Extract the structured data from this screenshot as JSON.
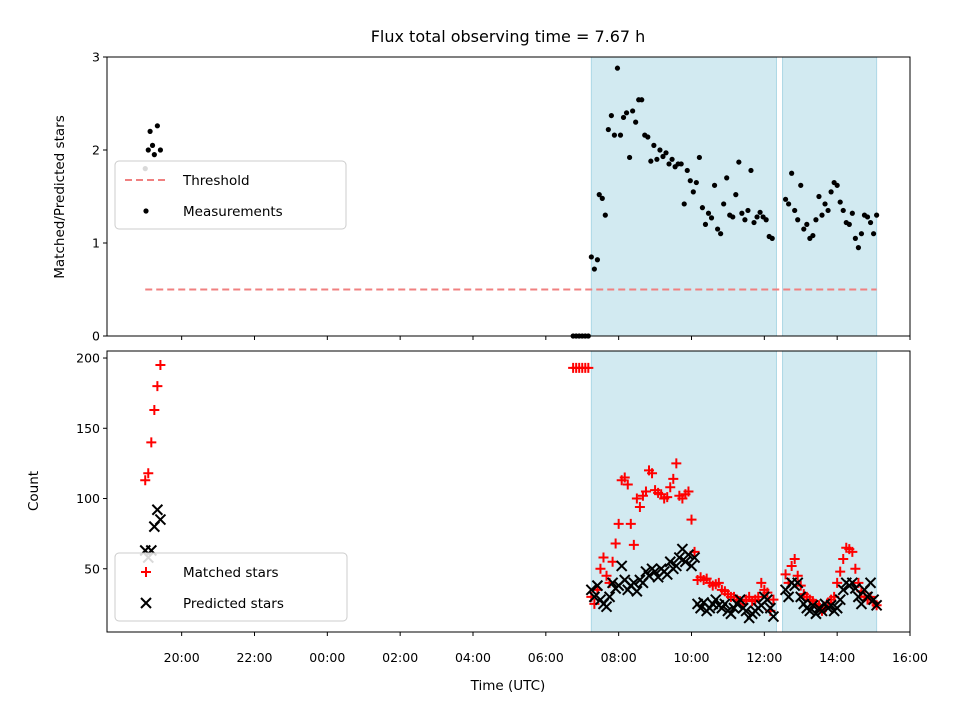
{
  "chart_data": [
    {
      "type": "scatter",
      "title": "Flux total observing time = 7.67 h",
      "ylabel": "Matched/Predicted stars",
      "xlabel": "",
      "ylim": [
        0,
        3
      ],
      "yticks": [
        "0",
        "1",
        "2",
        "3"
      ],
      "xlim_hours_utc": [
        17.95,
        40.0
      ],
      "shaded_intervals_utc": [
        [
          "07:15",
          "12:20"
        ],
        [
          "12:30",
          "15:05"
        ]
      ],
      "shade_color": "#add8e6",
      "legend": {
        "placement": "center-left",
        "entries": [
          "Threshold",
          "Measurements"
        ]
      },
      "series": [
        {
          "name": "Threshold",
          "style": "dashed-line",
          "color": "#f08080",
          "x": [
            "19:00",
            "15:05"
          ],
          "y": [
            0.5,
            0.5
          ]
        },
        {
          "name": "Measurements",
          "style": "dot",
          "color": "#000000",
          "x": [
            "19:00",
            "19:05",
            "19:08",
            "19:12",
            "19:15",
            "19:20",
            "19:25",
            "06:45",
            "06:50",
            "06:55",
            "07:00",
            "07:05",
            "07:10",
            "07:15",
            "07:20",
            "07:25",
            "07:28",
            "07:33",
            "07:38",
            "07:43",
            "07:48",
            "07:53",
            "07:58",
            "08:03",
            "08:08",
            "08:13",
            "08:18",
            "08:23",
            "08:28",
            "08:33",
            "08:38",
            "08:43",
            "08:48",
            "08:53",
            "08:58",
            "09:03",
            "09:08",
            "09:13",
            "09:18",
            "09:23",
            "09:28",
            "09:33",
            "09:38",
            "09:43",
            "09:48",
            "09:53",
            "09:58",
            "10:03",
            "10:08",
            "10:13",
            "10:18",
            "10:23",
            "10:28",
            "10:33",
            "10:38",
            "10:43",
            "10:48",
            "10:53",
            "10:58",
            "11:03",
            "11:08",
            "11:13",
            "11:18",
            "11:23",
            "11:28",
            "11:33",
            "11:38",
            "11:43",
            "11:48",
            "11:53",
            "11:58",
            "12:03",
            "12:08",
            "12:13",
            "12:35",
            "12:40",
            "12:45",
            "12:50",
            "12:55",
            "13:00",
            "13:05",
            "13:10",
            "13:15",
            "13:20",
            "13:25",
            "13:30",
            "13:35",
            "13:40",
            "13:45",
            "13:50",
            "13:55",
            "14:00",
            "14:05",
            "14:10",
            "14:15",
            "14:20",
            "14:25",
            "14:30",
            "14:35",
            "14:40",
            "14:45",
            "14:50",
            "14:55",
            "15:00",
            "15:05"
          ],
          "y": [
            1.8,
            2.0,
            2.2,
            2.05,
            1.95,
            2.26,
            2.0,
            0,
            0,
            0,
            0,
            0,
            0,
            0.85,
            0.72,
            0.82,
            1.52,
            1.48,
            1.3,
            2.22,
            2.37,
            2.16,
            2.88,
            2.16,
            2.35,
            2.4,
            1.92,
            2.42,
            2.3,
            2.54,
            2.54,
            2.16,
            2.14,
            1.88,
            2.05,
            1.9,
            2.0,
            1.93,
            1.97,
            1.85,
            1.9,
            1.82,
            1.85,
            1.85,
            1.42,
            1.78,
            1.67,
            1.55,
            1.65,
            1.92,
            1.38,
            1.2,
            1.32,
            1.27,
            1.62,
            1.15,
            1.1,
            1.42,
            1.7,
            1.3,
            1.28,
            1.52,
            1.87,
            1.32,
            1.25,
            1.35,
            1.78,
            1.22,
            1.28,
            1.33,
            1.28,
            1.25,
            1.07,
            1.05,
            1.47,
            1.42,
            1.75,
            1.35,
            1.25,
            1.62,
            1.15,
            1.2,
            1.05,
            1.08,
            1.25,
            1.5,
            1.3,
            1.42,
            1.35,
            1.55,
            1.65,
            1.62,
            1.44,
            1.35,
            1.22,
            1.2,
            1.32,
            1.05,
            0.95,
            1.1,
            1.3,
            1.28,
            1.22,
            1.1,
            1.3
          ]
        }
      ]
    },
    {
      "type": "scatter",
      "title": "",
      "ylabel": "Count",
      "xlabel": "Time (UTC)",
      "ylim": [
        5,
        205
      ],
      "yticks": [
        "50",
        "100",
        "150",
        "200"
      ],
      "xticks": [
        "20:00",
        "22:00",
        "00:00",
        "02:00",
        "04:00",
        "06:00",
        "08:00",
        "10:00",
        "12:00",
        "14:00",
        "16:00"
      ],
      "xlim_hours_utc": [
        17.95,
        40.0
      ],
      "shaded_intervals_utc": [
        [
          "07:15",
          "12:20"
        ],
        [
          "12:30",
          "15:05"
        ]
      ],
      "shade_color": "#add8e6",
      "legend": {
        "placement": "lower-left",
        "entries": [
          "Matched stars",
          "Predicted stars"
        ]
      },
      "series": [
        {
          "name": "Matched stars",
          "marker": "+",
          "color": "#ff0000",
          "x": [
            "19:00",
            "19:05",
            "19:10",
            "19:15",
            "19:20",
            "19:25",
            "06:45",
            "06:50",
            "06:55",
            "07:00",
            "07:05",
            "07:10",
            "07:15",
            "07:20",
            "07:25",
            "07:30",
            "07:35",
            "07:40",
            "07:45",
            "07:50",
            "07:55",
            "08:00",
            "08:05",
            "08:10",
            "08:15",
            "08:20",
            "08:25",
            "08:30",
            "08:35",
            "08:40",
            "08:45",
            "08:50",
            "08:55",
            "09:00",
            "09:05",
            "09:10",
            "09:15",
            "09:20",
            "09:25",
            "09:30",
            "09:35",
            "09:40",
            "09:45",
            "09:50",
            "09:55",
            "10:00",
            "10:05",
            "10:10",
            "10:15",
            "10:20",
            "10:25",
            "10:30",
            "10:35",
            "10:40",
            "10:45",
            "10:50",
            "10:55",
            "11:00",
            "11:05",
            "11:10",
            "11:15",
            "11:20",
            "11:25",
            "11:30",
            "11:35",
            "11:40",
            "11:45",
            "11:50",
            "11:55",
            "12:00",
            "12:05",
            "12:10",
            "12:15",
            "12:35",
            "12:40",
            "12:45",
            "12:50",
            "12:55",
            "13:00",
            "13:05",
            "13:10",
            "13:15",
            "13:20",
            "13:25",
            "13:30",
            "13:35",
            "13:40",
            "13:45",
            "13:50",
            "13:55",
            "14:00",
            "14:05",
            "14:10",
            "14:15",
            "14:20",
            "14:25",
            "14:30",
            "14:35",
            "14:40",
            "14:45",
            "14:50",
            "14:55",
            "15:00",
            "15:05"
          ],
          "y": [
            113,
            118,
            140,
            163,
            180,
            195,
            193,
            193,
            193,
            193,
            193,
            193,
            30,
            25,
            35,
            50,
            58,
            45,
            40,
            55,
            68,
            82,
            113,
            115,
            110,
            82,
            67,
            100,
            94,
            102,
            105,
            120,
            118,
            106,
            104,
            103,
            100,
            101,
            108,
            114,
            125,
            102,
            100,
            103,
            105,
            85,
            62,
            42,
            44,
            42,
            43,
            40,
            38,
            39,
            40,
            35,
            34,
            32,
            30,
            30,
            28,
            27,
            25,
            28,
            30,
            27,
            28,
            30,
            40,
            35,
            33,
            20,
            28,
            46,
            40,
            52,
            57,
            45,
            38,
            32,
            30,
            28,
            27,
            25,
            24,
            20,
            22,
            26,
            28,
            30,
            40,
            48,
            57,
            65,
            64,
            62,
            50,
            40,
            34,
            30,
            28,
            30,
            26,
            24
          ]
        },
        {
          "name": "Predicted stars",
          "marker": "x",
          "color": "#000000",
          "x": [
            "19:00",
            "19:05",
            "19:10",
            "19:15",
            "19:20",
            "19:25",
            "07:15",
            "07:20",
            "07:25",
            "07:30",
            "07:35",
            "07:40",
            "07:45",
            "07:50",
            "07:55",
            "08:00",
            "08:05",
            "08:10",
            "08:15",
            "08:20",
            "08:25",
            "08:30",
            "08:35",
            "08:40",
            "08:45",
            "08:50",
            "08:55",
            "09:00",
            "09:05",
            "09:10",
            "09:15",
            "09:20",
            "09:25",
            "09:30",
            "09:35",
            "09:40",
            "09:45",
            "09:50",
            "09:55",
            "10:00",
            "10:05",
            "10:10",
            "10:15",
            "10:20",
            "10:25",
            "10:30",
            "10:35",
            "10:40",
            "10:45",
            "10:50",
            "10:55",
            "11:00",
            "11:05",
            "11:10",
            "11:15",
            "11:20",
            "11:25",
            "11:30",
            "11:35",
            "11:40",
            "11:45",
            "11:50",
            "11:55",
            "12:00",
            "12:05",
            "12:10",
            "12:15",
            "12:35",
            "12:40",
            "12:45",
            "12:50",
            "12:55",
            "13:00",
            "13:05",
            "13:10",
            "13:15",
            "13:20",
            "13:25",
            "13:30",
            "13:35",
            "13:40",
            "13:45",
            "13:50",
            "13:55",
            "14:00",
            "14:05",
            "14:10",
            "14:15",
            "14:20",
            "14:25",
            "14:30",
            "14:35",
            "14:40",
            "14:45",
            "14:50",
            "14:55",
            "15:00",
            "15:05"
          ],
          "y": [
            63,
            58,
            63,
            80,
            92,
            85,
            35,
            30,
            38,
            28,
            25,
            23,
            30,
            40,
            36,
            38,
            52,
            42,
            35,
            38,
            40,
            34,
            42,
            40,
            48,
            45,
            50,
            48,
            44,
            50,
            48,
            46,
            55,
            50,
            52,
            58,
            64,
            55,
            60,
            52,
            58,
            25,
            22,
            26,
            20,
            22,
            25,
            28,
            24,
            22,
            25,
            20,
            18,
            22,
            25,
            28,
            22,
            20,
            15,
            18,
            20,
            22,
            24,
            30,
            28,
            22,
            16,
            35,
            30,
            40,
            38,
            40,
            30,
            25,
            22,
            20,
            24,
            18,
            22,
            20,
            25,
            22,
            24,
            20,
            22,
            28,
            35,
            40,
            38,
            40,
            36,
            30,
            25,
            35,
            30,
            40,
            28,
            24
          ]
        }
      ]
    }
  ]
}
